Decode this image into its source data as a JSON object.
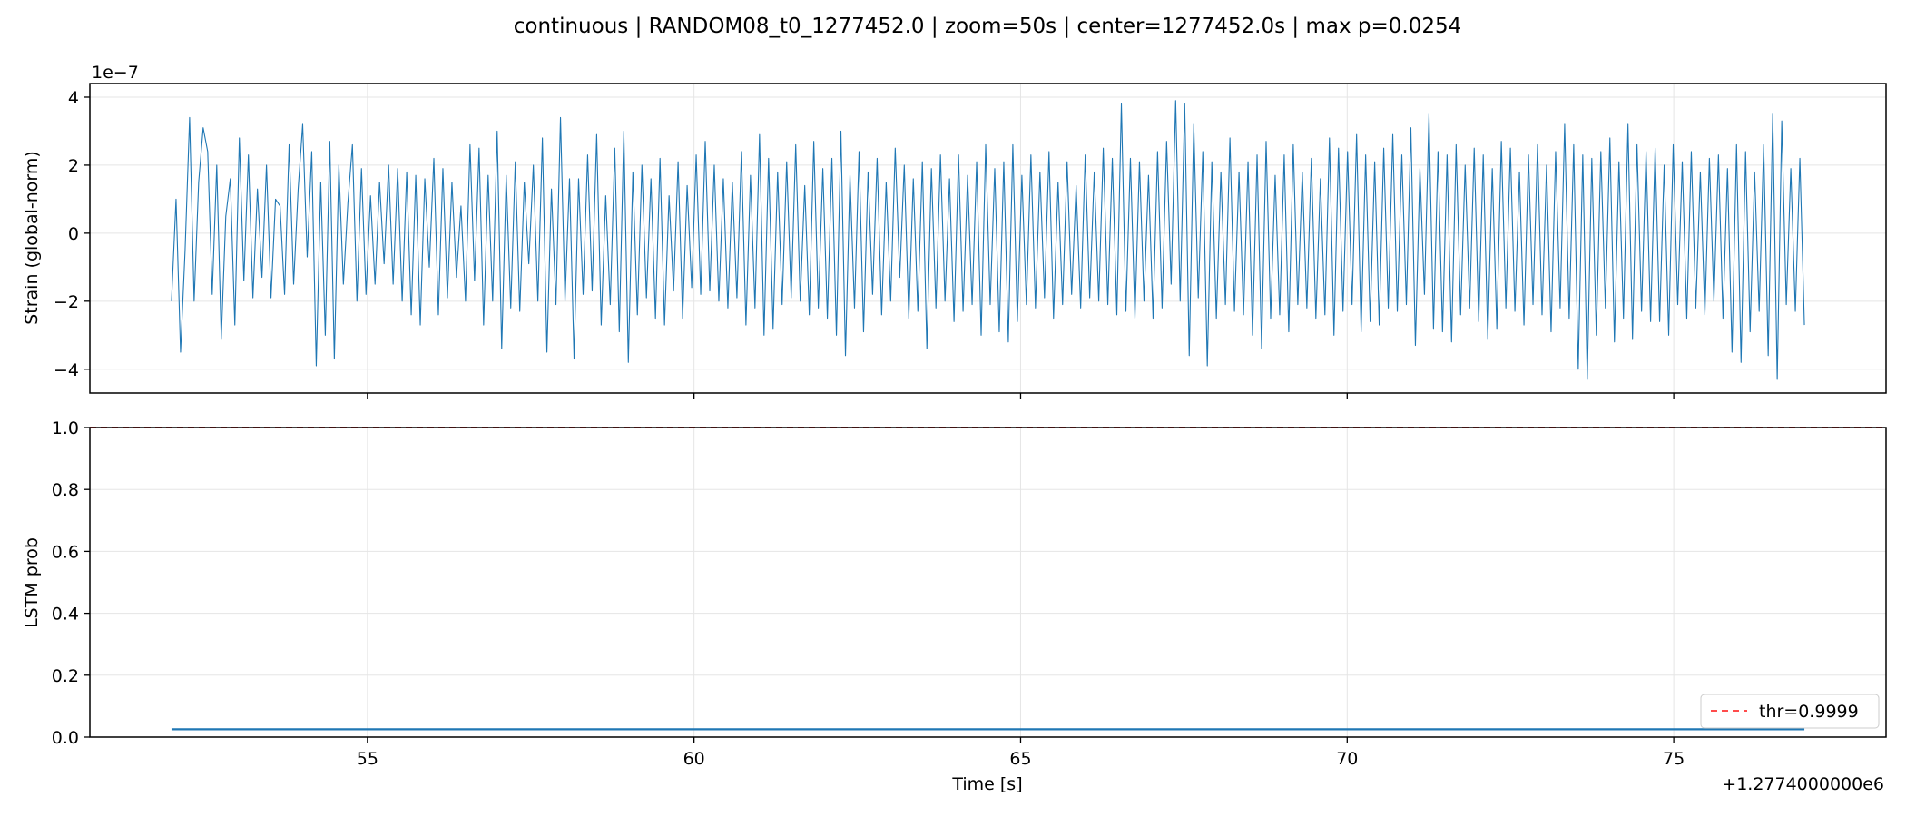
{
  "figure": {
    "suptitle": "continuous | RANDOM08_t0_1277452.0 | zoom=50s | center=1277452.0s | max p=0.0254",
    "x_offset_label": "+1.2774000000e6",
    "y_exponent_label": "1e−7",
    "xlabel": "Time [s]"
  },
  "chart_data": [
    {
      "type": "line",
      "ylabel": "Strain (global-norm)",
      "xlim": [
        50.75,
        78.25
      ],
      "ylim": [
        -4.7,
        4.4
      ],
      "y_scale_note": "1e−7",
      "x_ticks": [
        55,
        60,
        65,
        70,
        75
      ],
      "y_ticks": [
        4,
        2,
        0,
        -2,
        -4
      ],
      "y_tick_labels": [
        "4",
        "2",
        "0",
        "−2",
        "−4"
      ],
      "grid": true,
      "color": "#1f77b4",
      "series": [
        {
          "x_start": 52.0,
          "x_end": 77.0,
          "y": [
            -2.0,
            1.0,
            -3.5,
            -0.5,
            3.4,
            -2.0,
            1.5,
            3.1,
            2.4,
            -1.8,
            2.0,
            -3.1,
            0.5,
            1.6,
            -2.7,
            2.8,
            -1.4,
            2.3,
            -1.9,
            1.3,
            -1.3,
            2.0,
            -1.9,
            1.0,
            0.8,
            -1.8,
            2.6,
            -1.5,
            1.3,
            3.2,
            -0.7,
            2.4,
            -3.9,
            1.5,
            -3.0,
            2.7,
            -3.7,
            2.0,
            -1.5,
            0.9,
            2.6,
            -2.0,
            1.9,
            -1.8,
            1.1,
            -1.5,
            1.5,
            -0.9,
            2.0,
            -1.5,
            1.9,
            -2.0,
            1.8,
            -2.4,
            1.7,
            -2.7,
            1.6,
            -1.0,
            2.2,
            -2.4,
            1.9,
            -1.9,
            1.5,
            -1.3,
            0.8,
            -2.0,
            2.6,
            -1.4,
            2.5,
            -2.7,
            1.7,
            -2.0,
            3.0,
            -3.4,
            1.7,
            -2.2,
            2.1,
            -2.3,
            1.5,
            -0.9,
            2.0,
            -2.0,
            2.8,
            -3.5,
            1.3,
            -2.1,
            3.4,
            -2.0,
            1.6,
            -3.7,
            1.6,
            -1.8,
            2.3,
            -1.7,
            2.9,
            -2.7,
            1.1,
            -2.1,
            2.5,
            -2.9,
            3.0,
            -3.8,
            1.8,
            -2.4,
            2.0,
            -1.9,
            1.6,
            -2.5,
            2.2,
            -2.7,
            1.1,
            -1.7,
            2.1,
            -2.5,
            1.4,
            -1.6,
            2.3,
            -1.8,
            2.7,
            -1.7,
            2.0,
            -2.0,
            1.6,
            -2.2,
            1.5,
            -1.9,
            2.4,
            -2.7,
            1.7,
            -2.2,
            2.9,
            -3.0,
            2.2,
            -2.8,
            1.8,
            -2.1,
            2.1,
            -1.9,
            2.6,
            -2.0,
            1.4,
            -2.4,
            2.7,
            -2.2,
            1.9,
            -2.5,
            2.2,
            -3.0,
            3.0,
            -3.6,
            1.7,
            -2.2,
            2.4,
            -2.9,
            1.8,
            -1.8,
            2.2,
            -2.4,
            1.5,
            -2.0,
            2.5,
            -1.3,
            2.0,
            -2.5,
            1.6,
            -2.3,
            2.1,
            -3.4,
            1.9,
            -2.2,
            2.3,
            -2.0,
            1.6,
            -2.6,
            2.3,
            -2.3,
            1.7,
            -2.1,
            2.1,
            -3.0,
            2.6,
            -2.1,
            1.9,
            -2.9,
            2.1,
            -3.2,
            2.6,
            -2.6,
            1.7,
            -2.1,
            2.3,
            -2.2,
            1.8,
            -1.9,
            2.4,
            -2.5,
            1.5,
            -2.1,
            2.1,
            -1.8,
            1.4,
            -2.2,
            2.3,
            -1.9,
            1.8,
            -2.0,
            2.5,
            -2.1,
            2.2,
            -2.4,
            3.8,
            -2.3,
            2.2,
            -2.5,
            2.1,
            -2.0,
            1.7,
            -2.5,
            2.4,
            -2.2,
            2.7,
            -1.5,
            3.9,
            -2.0,
            3.8,
            -3.6,
            3.2,
            -1.9,
            2.4,
            -3.9,
            2.1,
            -2.5,
            1.8,
            -2.1,
            2.8,
            -2.3,
            1.8,
            -2.4,
            2.1,
            -3.0,
            2.3,
            -3.4,
            2.7,
            -2.5,
            1.7,
            -2.4,
            2.3,
            -2.9,
            2.6,
            -2.1,
            1.8,
            -2.2,
            2.2,
            -2.5,
            1.6,
            -2.4,
            2.8,
            -3.0,
            2.5,
            -2.3,
            2.4,
            -2.1,
            2.9,
            -2.9,
            2.3,
            -2.6,
            2.1,
            -2.7,
            2.5,
            -2.2,
            2.9,
            -2.3,
            2.3,
            -2.1,
            3.1,
            -3.3,
            1.9,
            -1.8,
            3.5,
            -2.8,
            2.4,
            -2.9,
            2.3,
            -3.2,
            2.6,
            -2.4,
            2.0,
            -2.2,
            2.5,
            -2.6,
            2.3,
            -3.1,
            1.9,
            -2.8,
            2.7,
            -2.2,
            2.5,
            -2.3,
            1.8,
            -2.7,
            2.3,
            -2.1,
            2.6,
            -2.4,
            2.0,
            -2.9,
            2.4,
            -2.2,
            3.2,
            -2.5,
            2.6,
            -4.0,
            2.3,
            -4.3,
            2.2,
            -3.0,
            2.4,
            -2.2,
            2.8,
            -3.2,
            2.1,
            -2.5,
            3.2,
            -3.1,
            2.6,
            -2.3,
            2.4,
            -2.6,
            2.5,
            -2.6,
            2.0,
            -3.0,
            2.6,
            -2.1,
            2.1,
            -2.5,
            2.4,
            -2.2,
            1.8,
            -2.4,
            2.2,
            -2.0,
            2.3,
            -2.5,
            1.9,
            -3.5,
            2.6,
            -3.8,
            2.4,
            -2.9,
            1.8,
            -2.3,
            2.6,
            -3.6,
            3.5,
            -4.3,
            3.3,
            -2.1,
            1.9,
            -2.3,
            2.2,
            -2.7
          ]
        }
      ]
    },
    {
      "type": "line",
      "ylabel": "LSTM prob",
      "xlabel": "Time [s]",
      "xlim": [
        50.75,
        78.25
      ],
      "ylim": [
        0.0,
        1.0
      ],
      "x_ticks": [
        55,
        60,
        65,
        70,
        75
      ],
      "y_ticks": [
        0.0,
        0.2,
        0.4,
        0.6,
        0.8,
        1.0
      ],
      "y_tick_labels": [
        "0.0",
        "0.2",
        "0.4",
        "0.6",
        "0.8",
        "1.0"
      ],
      "grid": true,
      "series": [
        {
          "name": "",
          "x": [
            52.0,
            77.0
          ],
          "y": [
            0.0254,
            0.0254
          ],
          "color": "#1f77b4"
        }
      ],
      "threshold": {
        "name": "thr=0.9999",
        "value": 0.9999,
        "color": "#ff4c4c",
        "style": "dashed"
      },
      "legend": {
        "placement": "lower right",
        "entries": [
          "thr=0.9999"
        ]
      }
    }
  ]
}
